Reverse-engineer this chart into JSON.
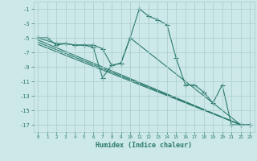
{
  "xlabel": "Humidex (Indice chaleur)",
  "xlim": [
    -0.5,
    23.5
  ],
  "ylim": [
    -18,
    0
  ],
  "xticks": [
    0,
    1,
    2,
    3,
    4,
    5,
    6,
    7,
    8,
    9,
    10,
    11,
    12,
    13,
    14,
    15,
    16,
    17,
    18,
    19,
    20,
    21,
    22,
    23
  ],
  "yticks": [
    -1,
    -3,
    -5,
    -7,
    -9,
    -11,
    -13,
    -15,
    -17
  ],
  "bg_color": "#cce8e8",
  "grid_color": "#aacccc",
  "line_color": "#2a7a6a",
  "line1_x": [
    0,
    1,
    2,
    3,
    4,
    5,
    6,
    7,
    8,
    9,
    10,
    11,
    12,
    13,
    14,
    15,
    16,
    17,
    18,
    19,
    20,
    21,
    22,
    23
  ],
  "line1_y": [
    -5,
    -5,
    -6,
    -5.8,
    -6,
    -6,
    -6.3,
    -10.5,
    -8.8,
    -8.5,
    -5,
    -1,
    -2,
    -2.5,
    -3.2,
    -7.8,
    -11.5,
    -11.5,
    -12.5,
    -14,
    -11.5,
    -17,
    -17,
    -17
  ],
  "line2_x": [
    0,
    2,
    3,
    4,
    5,
    6,
    7,
    8,
    9,
    10,
    22,
    23
  ],
  "line2_y": [
    -5,
    -5.8,
    -5.8,
    -6,
    -6,
    -6,
    -6.5,
    -8.8,
    -8.5,
    -5,
    -17,
    -17
  ],
  "trend1_x": [
    0,
    22
  ],
  "trend1_y": [
    -5.3,
    -17
  ],
  "trend2_x": [
    0,
    22
  ],
  "trend2_y": [
    -5.6,
    -17
  ],
  "trend3_x": [
    0,
    22
  ],
  "trend3_y": [
    -5.9,
    -17
  ],
  "marker_size": 2.5,
  "line_width": 0.8
}
